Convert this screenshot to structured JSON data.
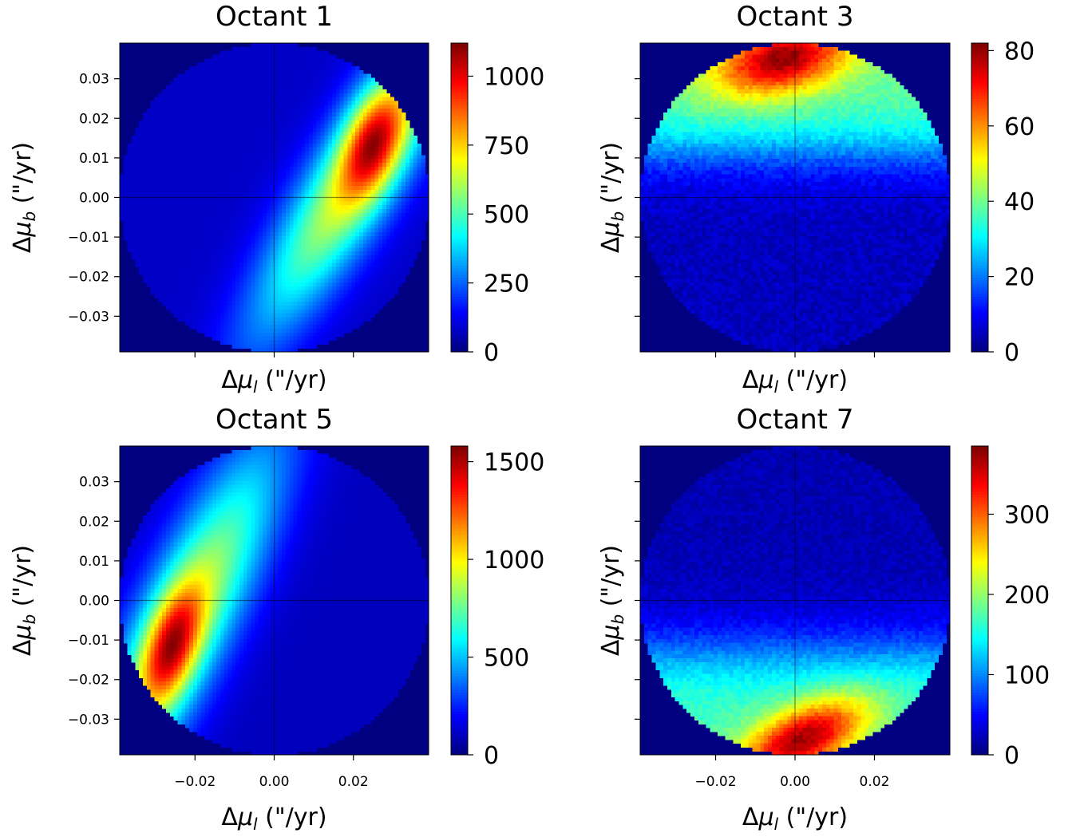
{
  "chart_data": [
    {
      "type": "heatmap",
      "title": "Octant 1",
      "xlabel": "Δμ_l (\"/yr)",
      "ylabel": "Δμ_b (\"/yr)",
      "xlim": [
        -0.039,
        0.039
      ],
      "ylim": [
        -0.039,
        0.039
      ],
      "x_ticks": [
        -0.02,
        0.0,
        0.02
      ],
      "x_tick_labels": [],
      "y_ticks": [
        0.03,
        0.02,
        0.01,
        0.0,
        -0.01,
        -0.02,
        -0.03
      ],
      "y_tick_labels": [
        "0.03",
        "0.02",
        "0.01",
        "0.00",
        "−0.01",
        "−0.02",
        "−0.03"
      ],
      "colormap": "jet",
      "colorbar_range": [
        0,
        1120
      ],
      "colorbar_ticks": [
        "0",
        "250",
        "500",
        "750",
        "1000"
      ],
      "colorbar_tick_values": [
        0,
        250,
        500,
        750,
        1000
      ],
      "peak": {
        "x": 0.025,
        "y": 0.014,
        "value": 1120
      },
      "description_of_shape": "crescent on right side of disk"
    },
    {
      "type": "heatmap",
      "title": "Octant 3",
      "xlabel": "Δμ_l (\"/yr)",
      "ylabel": "Δμ_b (\"/yr)",
      "xlim": [
        -0.039,
        0.039
      ],
      "ylim": [
        -0.039,
        0.039
      ],
      "x_ticks": [
        -0.02,
        0.0,
        0.02
      ],
      "x_tick_labels": [],
      "y_ticks": [
        0.03,
        0.02,
        0.01,
        0.0,
        -0.01,
        -0.02,
        -0.03
      ],
      "y_tick_labels": [],
      "colormap": "jet",
      "colorbar_range": [
        0,
        82
      ],
      "colorbar_ticks": [
        "0",
        "20",
        "40",
        "60",
        "80"
      ],
      "colorbar_tick_values": [
        0,
        20,
        40,
        60,
        80
      ],
      "peak": {
        "x": -0.003,
        "y": 0.035,
        "value": 82
      },
      "description_of_shape": "band across upper part of disk"
    },
    {
      "type": "heatmap",
      "title": "Octant 5",
      "xlabel": "Δμ_l (\"/yr)",
      "ylabel": "Δμ_b (\"/yr)",
      "xlim": [
        -0.039,
        0.039
      ],
      "ylim": [
        -0.039,
        0.039
      ],
      "x_ticks": [
        -0.02,
        0.0,
        0.02
      ],
      "x_tick_labels": [
        "−0.02",
        "0.00",
        "0.02"
      ],
      "y_ticks": [
        0.03,
        0.02,
        0.01,
        0.0,
        -0.01,
        -0.02,
        -0.03
      ],
      "y_tick_labels": [
        "0.03",
        "0.02",
        "0.01",
        "0.00",
        "−0.01",
        "−0.02",
        "−0.03"
      ],
      "colormap": "jet",
      "colorbar_range": [
        0,
        1580
      ],
      "colorbar_ticks": [
        "0",
        "500",
        "1000",
        "1500"
      ],
      "colorbar_tick_values": [
        0,
        500,
        1000,
        1500
      ],
      "peak": {
        "x": -0.026,
        "y": -0.012,
        "value": 1580
      },
      "description_of_shape": "crescent on left side of disk"
    },
    {
      "type": "heatmap",
      "title": "Octant 7",
      "xlabel": "Δμ_l (\"/yr)",
      "ylabel": "Δμ_b (\"/yr)",
      "xlim": [
        -0.039,
        0.039
      ],
      "ylim": [
        -0.039,
        0.039
      ],
      "x_ticks": [
        -0.02,
        0.0,
        0.02
      ],
      "x_tick_labels": [
        "−0.02",
        "0.00",
        "0.02"
      ],
      "y_ticks": [
        0.03,
        0.02,
        0.01,
        0.0,
        -0.01,
        -0.02,
        -0.03
      ],
      "y_tick_labels": [],
      "colormap": "jet",
      "colorbar_range": [
        0,
        385
      ],
      "colorbar_ticks": [
        "0",
        "100",
        "200",
        "300"
      ],
      "colorbar_tick_values": [
        0,
        100,
        200,
        300
      ],
      "peak": {
        "x": 0.002,
        "y": -0.035,
        "value": 385
      },
      "description_of_shape": "band across lower part of disk"
    }
  ]
}
